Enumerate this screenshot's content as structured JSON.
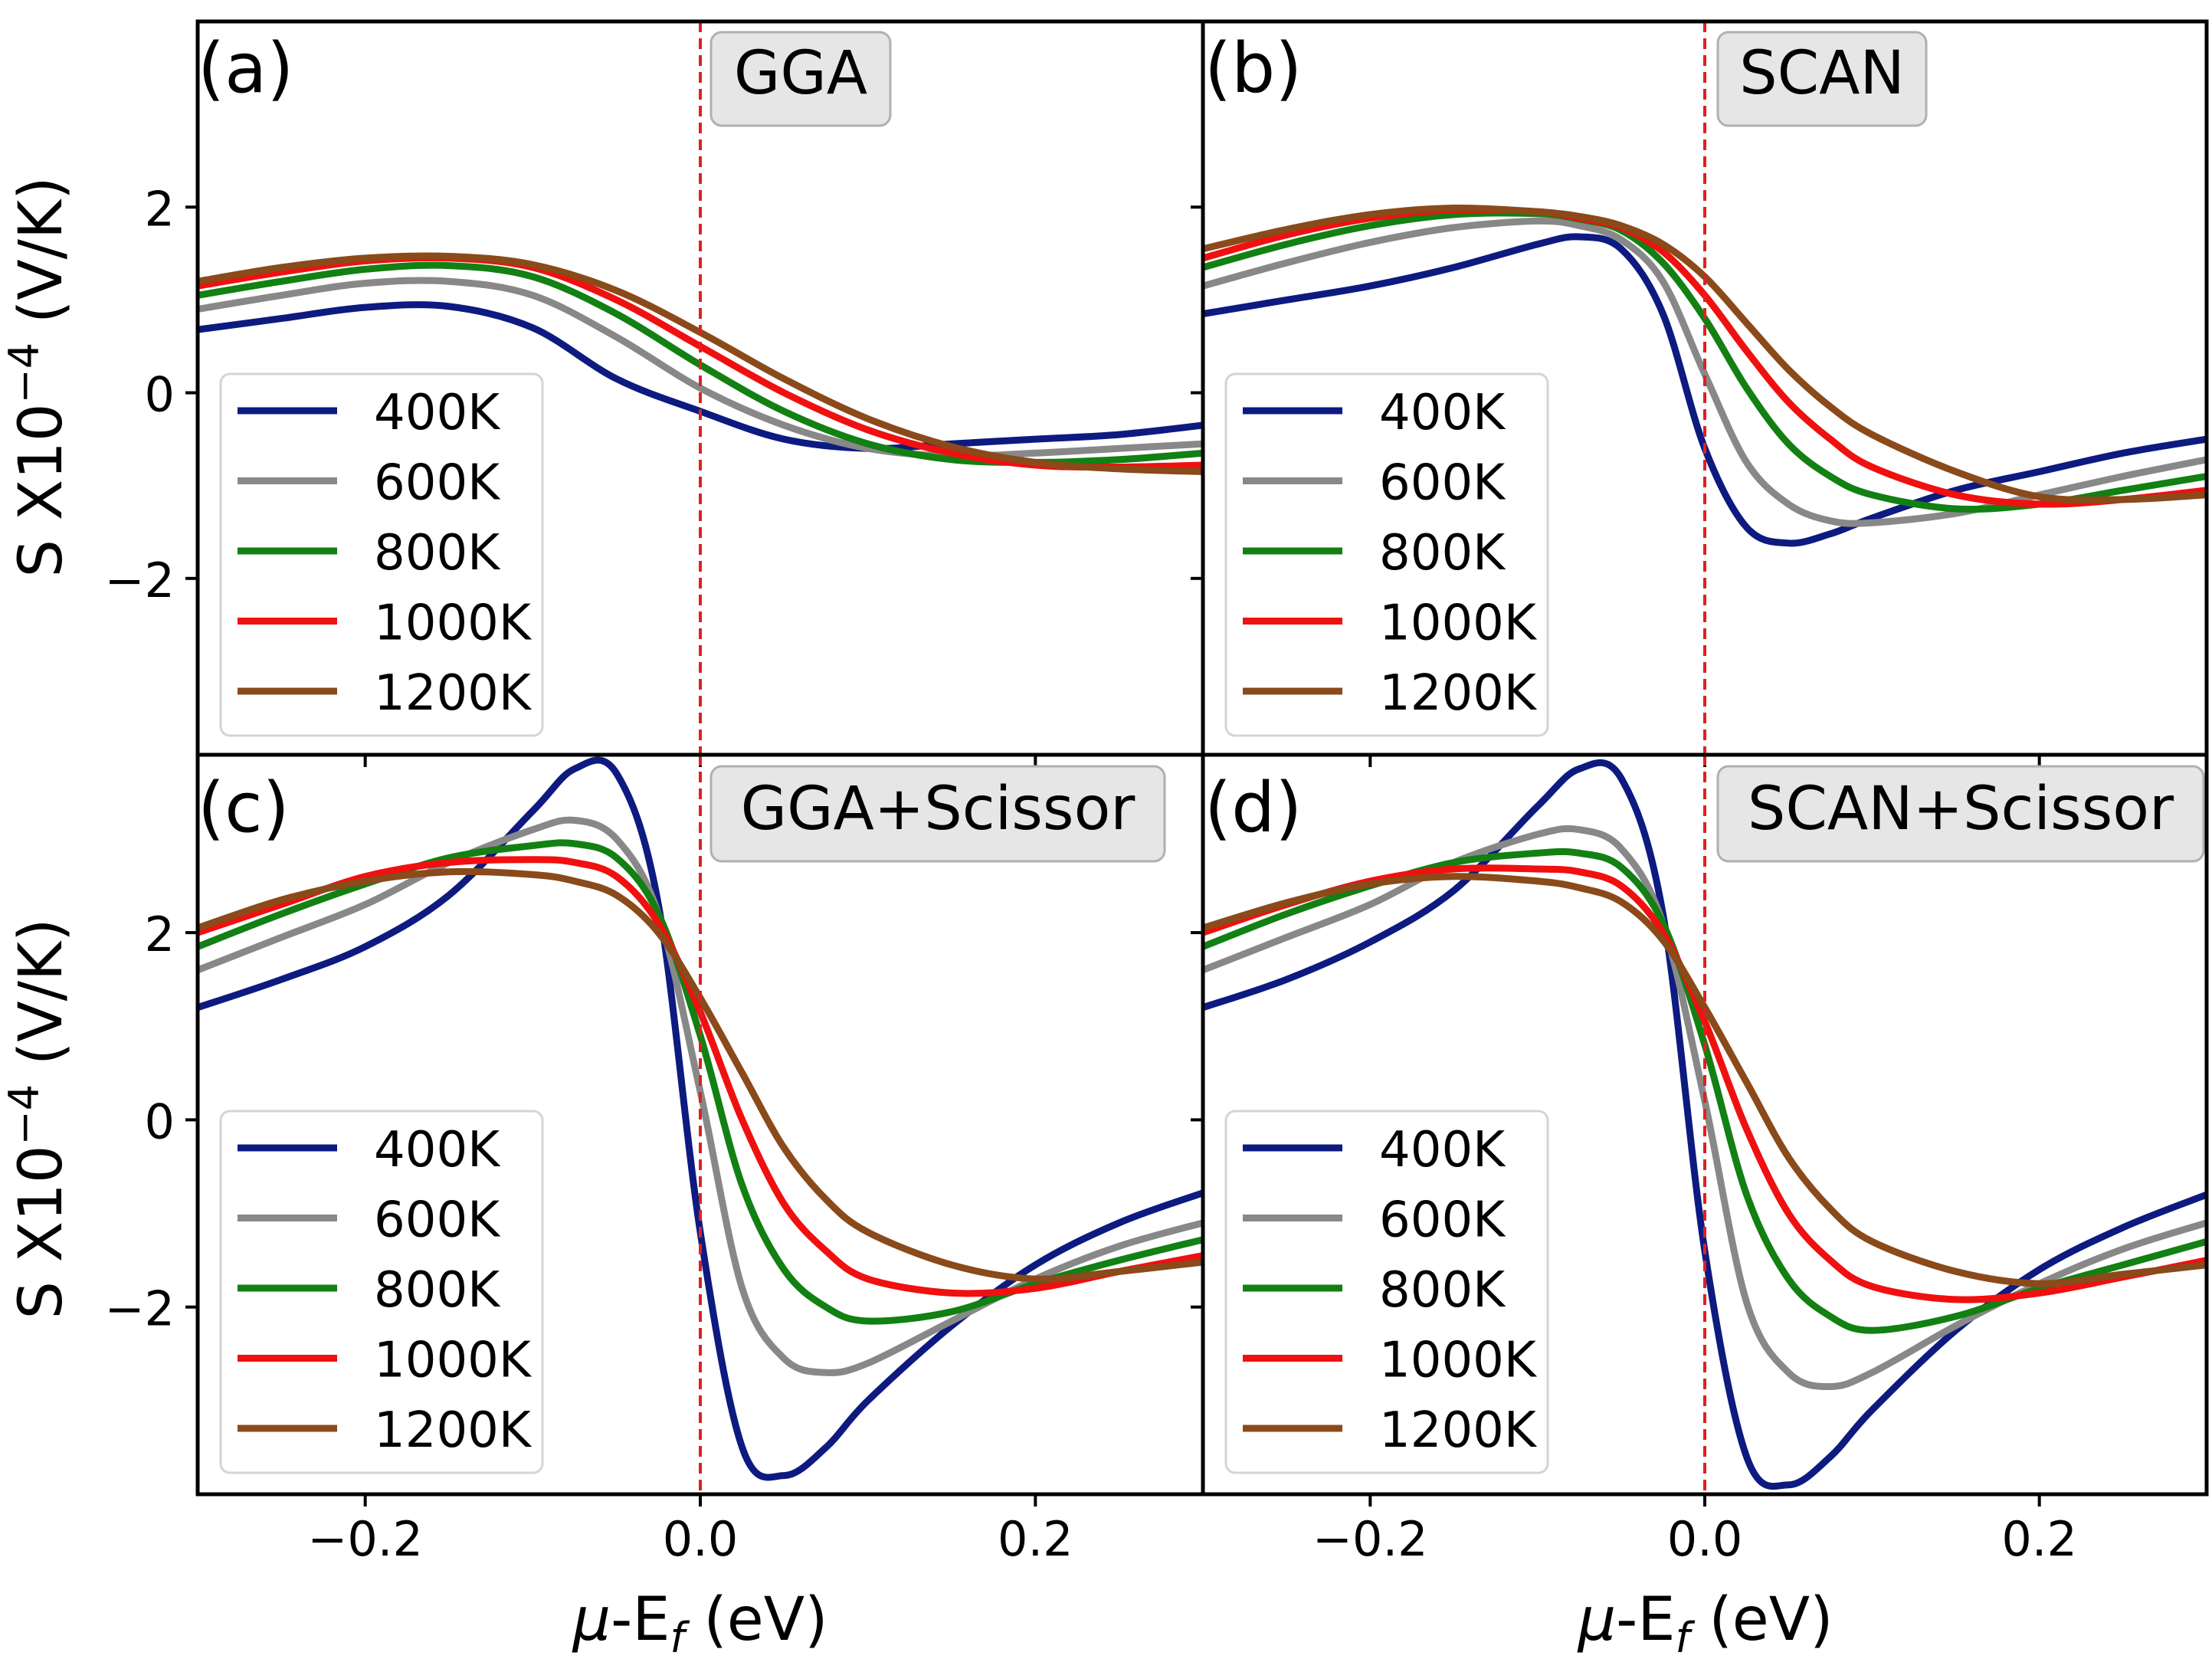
{
  "figure": {
    "shared_ylabel_prefix": "S X10",
    "shared_ylabel_exponent": "−4",
    "shared_ylabel_suffix": " (V/K)",
    "xlabel_mu": "μ",
    "xlabel_mid": "-E",
    "xlabel_sub": "f",
    "xlabel_unit": " (eV)"
  },
  "legend_entries": [
    "400K",
    "600K",
    "800K",
    "1000K",
    "1200K"
  ],
  "colors": {
    "400K": "#0d1a80",
    "600K": "#888888",
    "800K": "#128012",
    "1000K": "#f01010",
    "1200K": "#8a4a1a",
    "fermi_line": "#e02020",
    "label_box_fill": "#e6e6e6",
    "label_box_stroke": "#b0b0b0"
  },
  "chart_data": [
    {
      "panel": "(a)",
      "method": "GGA",
      "type": "line",
      "xlim": [
        -0.3,
        0.3
      ],
      "ylim": [
        -3.9,
        4.0
      ],
      "xticks": [
        -0.2,
        0.0,
        0.2
      ],
      "xtick_labels": [
        "−0.2",
        "0.0",
        "0.2"
      ],
      "yticks": [
        -2,
        0,
        2
      ],
      "ytick_labels": [
        "−2",
        "0",
        "2"
      ],
      "vline_x": 0.0,
      "x": [
        -0.3,
        -0.25,
        -0.2,
        -0.15,
        -0.1,
        -0.05,
        0.0,
        0.05,
        0.1,
        0.15,
        0.2,
        0.25,
        0.3
      ],
      "series": [
        {
          "name": "400K",
          "values": [
            0.68,
            0.8,
            0.92,
            0.93,
            0.7,
            0.15,
            -0.2,
            -0.5,
            -0.6,
            -0.55,
            -0.5,
            -0.45,
            -0.35
          ]
        },
        {
          "name": "600K",
          "values": [
            0.9,
            1.05,
            1.18,
            1.2,
            1.05,
            0.6,
            0.05,
            -0.35,
            -0.6,
            -0.68,
            -0.65,
            -0.6,
            -0.55
          ]
        },
        {
          "name": "800K",
          "values": [
            1.05,
            1.2,
            1.33,
            1.37,
            1.25,
            0.85,
            0.3,
            -0.2,
            -0.55,
            -0.72,
            -0.75,
            -0.72,
            -0.65
          ]
        },
        {
          "name": "1000K",
          "values": [
            1.15,
            1.3,
            1.42,
            1.45,
            1.35,
            1.0,
            0.5,
            0.0,
            -0.4,
            -0.65,
            -0.78,
            -0.8,
            -0.78
          ]
        },
        {
          "name": "1200K",
          "values": [
            1.2,
            1.35,
            1.45,
            1.47,
            1.38,
            1.1,
            0.65,
            0.15,
            -0.28,
            -0.58,
            -0.75,
            -0.82,
            -0.85
          ]
        }
      ]
    },
    {
      "panel": "(b)",
      "method": "SCAN",
      "type": "line",
      "xlim": [
        -0.3,
        0.3
      ],
      "ylim": [
        -3.9,
        4.0
      ],
      "xticks": [
        -0.2,
        0.0,
        0.2
      ],
      "xtick_labels": [
        "−0.2",
        "0.0",
        "0.2"
      ],
      "yticks": [
        -2,
        0,
        2
      ],
      "ytick_labels": [
        "−2",
        "0",
        "2"
      ],
      "vline_x": 0.0,
      "x": [
        -0.3,
        -0.25,
        -0.2,
        -0.15,
        -0.1,
        -0.075,
        -0.05,
        -0.025,
        0.0,
        0.025,
        0.05,
        0.075,
        0.1,
        0.15,
        0.2,
        0.25,
        0.3
      ],
      "series": [
        {
          "name": "400K",
          "values": [
            0.85,
            1.0,
            1.15,
            1.35,
            1.6,
            1.68,
            1.55,
            0.85,
            -0.6,
            -1.45,
            -1.62,
            -1.52,
            -1.35,
            -1.05,
            -0.85,
            -0.65,
            -0.5
          ]
        },
        {
          "name": "600K",
          "values": [
            1.15,
            1.4,
            1.62,
            1.78,
            1.85,
            1.8,
            1.65,
            1.2,
            0.2,
            -0.75,
            -1.2,
            -1.38,
            -1.4,
            -1.3,
            -1.1,
            -0.9,
            -0.72
          ]
        },
        {
          "name": "800K",
          "values": [
            1.35,
            1.6,
            1.8,
            1.92,
            1.93,
            1.87,
            1.75,
            1.4,
            0.8,
            0.05,
            -0.55,
            -0.9,
            -1.1,
            -1.25,
            -1.2,
            -1.05,
            -0.9
          ]
        },
        {
          "name": "1000K",
          "values": [
            1.45,
            1.7,
            1.88,
            1.97,
            1.95,
            1.88,
            1.78,
            1.52,
            1.05,
            0.45,
            -0.1,
            -0.5,
            -0.8,
            -1.1,
            -1.2,
            -1.15,
            -1.05
          ]
        },
        {
          "name": "1200K",
          "values": [
            1.55,
            1.76,
            1.92,
            1.99,
            1.95,
            1.9,
            1.8,
            1.6,
            1.25,
            0.75,
            0.25,
            -0.15,
            -0.45,
            -0.85,
            -1.12,
            -1.15,
            -1.1
          ]
        }
      ]
    },
    {
      "panel": "(c)",
      "method": "GGA+Scissor",
      "type": "line",
      "xlim": [
        -0.3,
        0.3
      ],
      "ylim": [
        -4.0,
        3.9
      ],
      "xticks": [
        -0.2,
        0.0,
        0.2
      ],
      "xtick_labels": [
        "−0.2",
        "0.0",
        "0.2"
      ],
      "yticks": [
        -2,
        0,
        2
      ],
      "ytick_labels": [
        "−2",
        "0",
        "2"
      ],
      "vline_x": 0.0,
      "x": [
        -0.3,
        -0.25,
        -0.2,
        -0.15,
        -0.1,
        -0.075,
        -0.05,
        -0.025,
        0.0,
        0.025,
        0.05,
        0.075,
        0.1,
        0.15,
        0.2,
        0.25,
        0.3
      ],
      "series": [
        {
          "name": "400K",
          "values": [
            1.2,
            1.5,
            1.85,
            2.4,
            3.3,
            3.75,
            3.7,
            2.3,
            -1.2,
            -3.5,
            -3.8,
            -3.5,
            -3.0,
            -2.2,
            -1.55,
            -1.1,
            -0.78
          ]
        },
        {
          "name": "600K",
          "values": [
            1.6,
            1.95,
            2.3,
            2.75,
            3.1,
            3.2,
            3.0,
            2.2,
            0.3,
            -1.8,
            -2.55,
            -2.7,
            -2.6,
            -2.15,
            -1.7,
            -1.35,
            -1.1
          ]
        },
        {
          "name": "800K",
          "values": [
            1.85,
            2.2,
            2.52,
            2.8,
            2.93,
            2.95,
            2.8,
            2.2,
            0.9,
            -0.7,
            -1.6,
            -2.0,
            -2.15,
            -2.05,
            -1.75,
            -1.5,
            -1.28
          ]
        },
        {
          "name": "1000K",
          "values": [
            2.0,
            2.3,
            2.6,
            2.75,
            2.78,
            2.75,
            2.6,
            2.1,
            1.15,
            0.0,
            -0.9,
            -1.4,
            -1.7,
            -1.85,
            -1.8,
            -1.62,
            -1.45
          ]
        },
        {
          "name": "1200K",
          "values": [
            2.05,
            2.35,
            2.55,
            2.65,
            2.62,
            2.55,
            2.4,
            2.0,
            1.3,
            0.5,
            -0.3,
            -0.85,
            -1.2,
            -1.55,
            -1.7,
            -1.62,
            -1.52
          ]
        }
      ]
    },
    {
      "panel": "(d)",
      "method": "SCAN+Scissor",
      "type": "line",
      "xlim": [
        -0.3,
        0.3
      ],
      "ylim": [
        -4.0,
        3.9
      ],
      "xticks": [
        -0.2,
        0.0,
        0.2
      ],
      "xtick_labels": [
        "−0.2",
        "0.0",
        "0.2"
      ],
      "yticks": [
        -2,
        0,
        2
      ],
      "ytick_labels": [
        "−2",
        "0",
        "2"
      ],
      "vline_x": 0.0,
      "x": [
        -0.3,
        -0.25,
        -0.2,
        -0.15,
        -0.1,
        -0.075,
        -0.05,
        -0.025,
        0.0,
        0.025,
        0.05,
        0.075,
        0.1,
        0.15,
        0.2,
        0.25,
        0.3
      ],
      "series": [
        {
          "name": "400K",
          "values": [
            1.2,
            1.5,
            1.9,
            2.45,
            3.35,
            3.75,
            3.65,
            2.2,
            -1.4,
            -3.6,
            -3.9,
            -3.6,
            -3.1,
            -2.25,
            -1.6,
            -1.15,
            -0.8
          ]
        },
        {
          "name": "600K",
          "values": [
            1.6,
            1.95,
            2.3,
            2.75,
            3.05,
            3.1,
            2.9,
            2.1,
            0.2,
            -1.95,
            -2.7,
            -2.85,
            -2.7,
            -2.2,
            -1.75,
            -1.38,
            -1.1
          ]
        },
        {
          "name": "800K",
          "values": [
            1.85,
            2.2,
            2.5,
            2.75,
            2.85,
            2.85,
            2.7,
            2.1,
            0.8,
            -0.8,
            -1.7,
            -2.1,
            -2.25,
            -2.1,
            -1.8,
            -1.55,
            -1.3
          ]
        },
        {
          "name": "1000K",
          "values": [
            2.0,
            2.3,
            2.55,
            2.68,
            2.68,
            2.65,
            2.5,
            2.0,
            1.05,
            -0.1,
            -1.0,
            -1.5,
            -1.78,
            -1.92,
            -1.85,
            -1.68,
            -1.5
          ]
        },
        {
          "name": "1200K",
          "values": [
            2.05,
            2.32,
            2.52,
            2.6,
            2.55,
            2.48,
            2.33,
            1.92,
            1.2,
            0.4,
            -0.4,
            -0.95,
            -1.3,
            -1.62,
            -1.75,
            -1.65,
            -1.55
          ]
        }
      ]
    }
  ]
}
